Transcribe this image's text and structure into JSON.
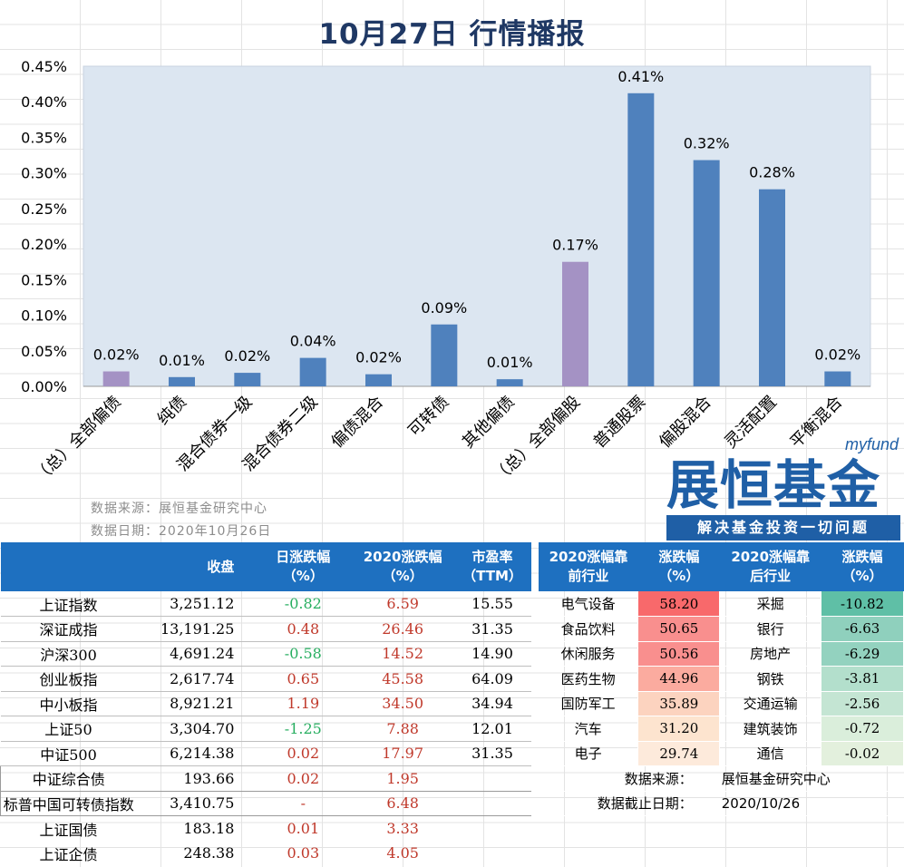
{
  "title": "10月27日  行情播报",
  "chart_data": {
    "type": "bar",
    "categories": [
      "（总）全部偏债",
      "纯债",
      "混合债券一级",
      "混合债券二级",
      "偏债混合",
      "可转债",
      "其他偏债",
      "（总）全部偏股",
      "普通股票",
      "偏股混合",
      "灵活配置",
      "平衡混合"
    ],
    "values": [
      0.02,
      0.01,
      0.02,
      0.04,
      0.02,
      0.09,
      0.01,
      0.17,
      0.41,
      0.32,
      0.28,
      0.02
    ],
    "heights": [
      0.021,
      0.013,
      0.019,
      0.04,
      0.017,
      0.087,
      0.01,
      0.175,
      0.412,
      0.318,
      0.277,
      0.021
    ],
    "data_labels": [
      "0.02%",
      "0.01%",
      "0.02%",
      "0.04%",
      "0.02%",
      "0.09%",
      "0.01%",
      "0.17%",
      "0.41%",
      "0.32%",
      "0.28%",
      "0.02%"
    ],
    "highlight": [
      true,
      false,
      false,
      false,
      false,
      false,
      false,
      true,
      false,
      false,
      false,
      false
    ],
    "y_ticks": [
      "0.00%",
      "0.05%",
      "0.10%",
      "0.15%",
      "0.20%",
      "0.25%",
      "0.30%",
      "0.35%",
      "0.40%",
      "0.45%"
    ],
    "ylim": [
      0,
      0.45
    ],
    "colors": {
      "bar": "#4f81bd",
      "highlight": "#a492c4",
      "plot_bg": "#dce6f1"
    }
  },
  "source": {
    "line1": "数据来源：展恒基金研究中心",
    "line2": "数据日期：2020年10月26日"
  },
  "logo": {
    "small": "myfund",
    "main": "展恒基金",
    "slogan": "解决基金投资一切问题"
  },
  "index_table": {
    "headers": {
      "close": "收盘",
      "chg": "日涨跌幅\n（%）",
      "ytd": "2020涨跌幅\n（%）",
      "pe": "市盈率\n（TTM）"
    },
    "rows": [
      {
        "name": "上证指数",
        "close": "3,251.12",
        "chg": "-0.82",
        "chg_sign": "neg",
        "ytd": "6.59",
        "pe": "15.55"
      },
      {
        "name": "深证成指",
        "close": "13,191.25",
        "chg": "0.48",
        "chg_sign": "pos",
        "ytd": "26.46",
        "pe": "31.35"
      },
      {
        "name": "沪深300",
        "close": "4,691.24",
        "chg": "-0.58",
        "chg_sign": "neg",
        "ytd": "14.52",
        "pe": "14.90"
      },
      {
        "name": "创业板指",
        "close": "2,617.74",
        "chg": "0.65",
        "chg_sign": "pos",
        "ytd": "45.58",
        "pe": "64.09"
      },
      {
        "name": "中小板指",
        "close": "8,921.21",
        "chg": "1.19",
        "chg_sign": "pos",
        "ytd": "34.50",
        "pe": "34.94"
      },
      {
        "name": "上证50",
        "close": "3,304.70",
        "chg": "-1.25",
        "chg_sign": "neg",
        "ytd": "7.88",
        "pe": "12.01"
      },
      {
        "name": "中证500",
        "close": "6,214.38",
        "chg": "0.02",
        "chg_sign": "pos",
        "ytd": "17.97",
        "pe": "31.35"
      },
      {
        "name": "中证综合债",
        "close": "193.66",
        "chg": "0.02",
        "chg_sign": "pos",
        "ytd": "1.95",
        "pe": ""
      },
      {
        "name": "标普中国可转债指数",
        "close": "3,410.75",
        "chg": "-",
        "chg_sign": "na",
        "ytd": "6.48",
        "pe": ""
      },
      {
        "name": "上证国债",
        "close": "183.18",
        "chg": "0.01",
        "chg_sign": "pos",
        "ytd": "3.33",
        "pe": ""
      },
      {
        "name": "上证企债",
        "close": "248.38",
        "chg": "0.03",
        "chg_sign": "pos",
        "ytd": "4.05",
        "pe": ""
      }
    ]
  },
  "industry_table": {
    "headers": {
      "top_ind": "2020涨幅靠\n前行业",
      "top_val": "涨跌幅\n（%）",
      "bottom_ind": "2020涨幅靠\n后行业",
      "bottom_val": "涨跌幅\n（%）"
    },
    "rows": [
      {
        "top_ind": "电气设备",
        "top_val": "58.20",
        "top_color": "#f8696b",
        "bottom_ind": "采掘",
        "bottom_val": "-10.82",
        "bottom_color": "#5fbfa6"
      },
      {
        "top_ind": "食品饮料",
        "top_val": "50.65",
        "top_color": "#f98f8e",
        "bottom_ind": "银行",
        "bottom_val": "-6.63",
        "bottom_color": "#8fd0bd"
      },
      {
        "top_ind": "休闲服务",
        "top_val": "50.56",
        "top_color": "#f98f8e",
        "bottom_ind": "房地产",
        "bottom_val": "-6.29",
        "bottom_color": "#93d2bf"
      },
      {
        "top_ind": "医药生物",
        "top_val": "44.96",
        "top_color": "#fbab9f",
        "bottom_ind": "钢铁",
        "bottom_val": "-3.81",
        "bottom_color": "#b3dfcc"
      },
      {
        "top_ind": "国防军工",
        "top_val": "35.89",
        "top_color": "#fcd3bf",
        "bottom_ind": "交通运输",
        "bottom_val": "-2.56",
        "bottom_color": "#c4e5d3"
      },
      {
        "top_ind": "汽车",
        "top_val": "31.20",
        "top_color": "#fde4cf",
        "bottom_ind": "建筑装饰",
        "bottom_val": "-0.72",
        "bottom_color": "#daeedb"
      },
      {
        "top_ind": "电子",
        "top_val": "29.74",
        "top_color": "#fdeadb",
        "bottom_ind": "通信",
        "bottom_val": "-0.02",
        "bottom_color": "#e3f0dd"
      }
    ],
    "note_source_label": "数据来源：",
    "note_source_value": "展恒基金研究中心",
    "note_date_label": "数据截止日期：",
    "note_date_value": "2020/10/26"
  }
}
